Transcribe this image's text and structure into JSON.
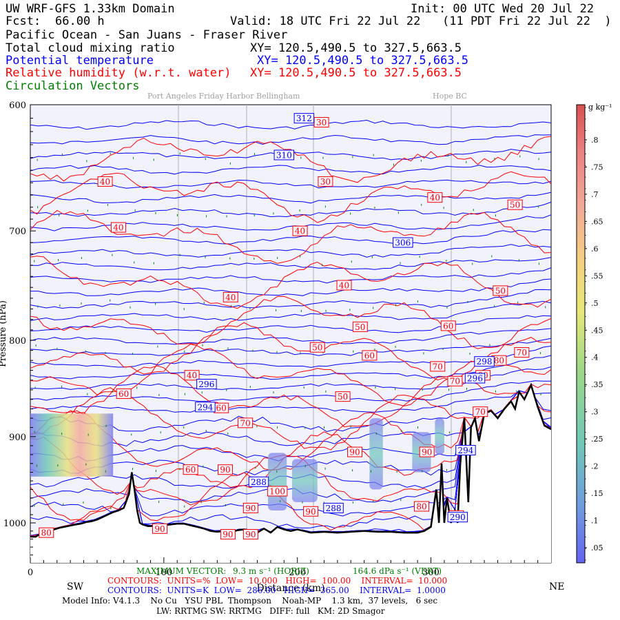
{
  "header": {
    "line1_left": "UW WRF-GFS 1.33km Domain",
    "line1_right": "Init: 00 UTC Wed 20 Jul 22",
    "fcst_label": "Fcst:",
    "fcst_value": "66.00 h",
    "valid": "Valid: 18 UTC Fri 22 Jul 22",
    "valid_local": "(11 PDT Fri 22 Jul 22  )",
    "region": "Pacific Ocean - San Juans - Fraser River",
    "field1": "Total cloud mixing ratio",
    "field1_xy": "XY= 120.5,490.5 to 327.5,663.5",
    "field2": "Potential temperature",
    "field2_xy": "XY= 120.5,490.5 to 327.5,663.5",
    "field3": "Relative humidity (w.r.t. water)",
    "field3_xy": "XY= 120.5,490.5 to 327.5,663.5",
    "field4": "Circulation Vectors"
  },
  "places": {
    "group1": "Port Angeles Friday Harbor Bellingham",
    "group2": "Hope BC"
  },
  "colors": {
    "theta": "#0000ff",
    "rh": "#ff0000",
    "vectors": "#008000",
    "terrain": "#000000",
    "background": "#f2f2fc"
  },
  "chart_data": {
    "type": "cross-section",
    "ylabel": "Pressure (hPa)",
    "xlabel": "Distance (km)",
    "x_left": "SW",
    "x_right": "NE",
    "xlim": [
      0,
      390
    ],
    "ylim_hpa": [
      1050,
      600
    ],
    "y_log_pressure": true,
    "y_ticks": [
      {
        "label": "600",
        "value": 600
      },
      {
        "label": "700",
        "value": 700
      },
      {
        "label": "800",
        "value": 800
      },
      {
        "label": "900",
        "value": 900
      },
      {
        "label": "1000",
        "value": 1000
      }
    ],
    "x_ticks": [
      {
        "label": "0",
        "value": 0
      },
      {
        "label": "100",
        "value": 100
      },
      {
        "label": "200",
        "value": 200
      },
      {
        "label": "300",
        "value": 300
      }
    ],
    "colorbar": {
      "unit": "g kg⁻¹",
      "ticks": [
        ".8",
        ".75",
        ".7",
        ".65",
        ".6",
        ".55",
        ".5",
        ".45",
        ".4",
        ".35",
        ".3",
        ".25",
        ".2",
        ".15",
        ".1",
        ".05"
      ],
      "colors": [
        "#e06a6a",
        "#f08080",
        "#f4a8a0",
        "#f2c8b8",
        "#f7e080",
        "#dde880",
        "#9ed888",
        "#6fc8b8",
        "#6f9ae0",
        "#7c7cf0"
      ]
    },
    "theta_labels": [
      {
        "text": "312",
        "x": 205,
        "p": 610
      },
      {
        "text": "310",
        "x": 190,
        "p": 638
      },
      {
        "text": "306",
        "x": 279,
        "p": 710
      },
      {
        "text": "298",
        "x": 340,
        "p": 821
      },
      {
        "text": "296",
        "x": 132,
        "p": 844
      },
      {
        "text": "296",
        "x": 333,
        "p": 838
      },
      {
        "text": "294",
        "x": 131,
        "p": 868
      },
      {
        "text": "294",
        "x": 326,
        "p": 915
      },
      {
        "text": "288",
        "x": 171,
        "p": 951
      },
      {
        "text": "288",
        "x": 227,
        "p": 982
      },
      {
        "text": "290",
        "x": 320,
        "p": 993
      }
    ],
    "rh_labels": [
      {
        "text": "30",
        "x": 218,
        "p": 613
      },
      {
        "text": "30",
        "x": 221,
        "p": 659
      },
      {
        "text": "40",
        "x": 56,
        "p": 659
      },
      {
        "text": "40",
        "x": 66,
        "p": 697
      },
      {
        "text": "40",
        "x": 202,
        "p": 700
      },
      {
        "text": "40",
        "x": 303,
        "p": 672
      },
      {
        "text": "40",
        "x": 150,
        "p": 759
      },
      {
        "text": "40",
        "x": 235,
        "p": 748
      },
      {
        "text": "40",
        "x": 121,
        "p": 835
      },
      {
        "text": "50",
        "x": 363,
        "p": 678
      },
      {
        "text": "50",
        "x": 352,
        "p": 753
      },
      {
        "text": "50",
        "x": 247,
        "p": 787
      },
      {
        "text": "50",
        "x": 215,
        "p": 807
      },
      {
        "text": "50",
        "x": 234,
        "p": 857
      },
      {
        "text": "60",
        "x": 313,
        "p": 786
      },
      {
        "text": "60",
        "x": 254,
        "p": 815
      },
      {
        "text": "60",
        "x": 70,
        "p": 854
      },
      {
        "text": "60",
        "x": 143,
        "p": 869
      },
      {
        "text": "60",
        "x": 120,
        "p": 937
      },
      {
        "text": "70",
        "x": 368,
        "p": 812
      },
      {
        "text": "70",
        "x": 305,
        "p": 826
      },
      {
        "text": "70",
        "x": 318,
        "p": 841
      },
      {
        "text": "70",
        "x": 161,
        "p": 885
      },
      {
        "text": "70",
        "x": 337,
        "p": 873
      },
      {
        "text": "80",
        "x": 351,
        "p": 820
      },
      {
        "text": "80",
        "x": 339,
        "p": 835
      },
      {
        "text": "80",
        "x": 12,
        "p": 1012
      },
      {
        "text": "80",
        "x": 293,
        "p": 980
      },
      {
        "text": "90",
        "x": 146,
        "p": 937
      },
      {
        "text": "90",
        "x": 243,
        "p": 917
      },
      {
        "text": "90",
        "x": 297,
        "p": 917
      },
      {
        "text": "90",
        "x": 165,
        "p": 982
      },
      {
        "text": "90",
        "x": 210,
        "p": 986
      },
      {
        "text": "90",
        "x": 148,
        "p": 1014
      },
      {
        "text": "90",
        "x": 165,
        "p": 1014
      },
      {
        "text": "90",
        "x": 97,
        "p": 1007
      },
      {
        "text": "100",
        "x": 185,
        "p": 962
      },
      {
        "text": "80",
        "x": 319,
        "p": 991
      }
    ],
    "terrain_surface": {
      "x": [
        0,
        4,
        8,
        12,
        18,
        22,
        28,
        34,
        38,
        42,
        46,
        50,
        54,
        58,
        62,
        66,
        70,
        74,
        76,
        78,
        80,
        82,
        84,
        86,
        88,
        90,
        95,
        100,
        105,
        110,
        115,
        120,
        125,
        130,
        135,
        140,
        145,
        150,
        155,
        160,
        165,
        170,
        175,
        180,
        185,
        190,
        195,
        200,
        205,
        210,
        220,
        230,
        240,
        250,
        260,
        270,
        280,
        290,
        295,
        300,
        304,
        306,
        308,
        310,
        312,
        315,
        318,
        320,
        322,
        325,
        328,
        330,
        333,
        336,
        340,
        345,
        350,
        355,
        360,
        363,
        366,
        370,
        375,
        380,
        385,
        390
      ],
      "p": [
        1017,
        1017,
        1013,
        1009,
        1008,
        1006,
        1004,
        1002,
        1001,
        999,
        998,
        996,
        993,
        990,
        987,
        985,
        982,
        965,
        940,
        960,
        985,
        1000,
        1002,
        1003,
        1004,
        1004,
        1003,
        1003,
        1002,
        1001,
        1001,
        1003,
        1005,
        1007,
        1010,
        1011,
        1010,
        1012,
        1009,
        1008,
        1010,
        1012,
        1007,
        1012,
        1005,
        1008,
        1010,
        1008,
        1010,
        1012,
        1011,
        1012,
        1011,
        1010,
        1011,
        1011,
        1012,
        1012,
        1010,
        1005,
        960,
        1000,
        930,
        1000,
        970,
        1000,
        985,
        1000,
        930,
        880,
        975,
        890,
        880,
        905,
        875,
        872,
        880,
        870,
        862,
        870,
        852,
        860,
        845,
        868,
        888,
        892
      ]
    }
  },
  "footer": {
    "max_vector_label": "MAXIMUM VECTOR:",
    "max_vector_horiz": "9.3 m s⁻¹ (HORIZ)",
    "max_vector_vert": "164.6 dPa s⁻¹ (VERT)",
    "rh_contours": "CONTOURS:  UNITS=%  LOW=  10.000   HIGH=  100.00    INTERVAL=  10.000",
    "theta_contours": "CONTOURS:  UNITS=K  LOW=  286.00   HIGH=  365.00    INTERVAL=  1.0000",
    "model_info": "Model Info: V4.1.3    No Cu   YSU PBL  Thompson    Noah-MP    1.3 km,  37 levels,   6 sec",
    "model_info2": "LW: RRTMG SW: RRTMG   DIFF: full   KM: 2D Smagor"
  }
}
